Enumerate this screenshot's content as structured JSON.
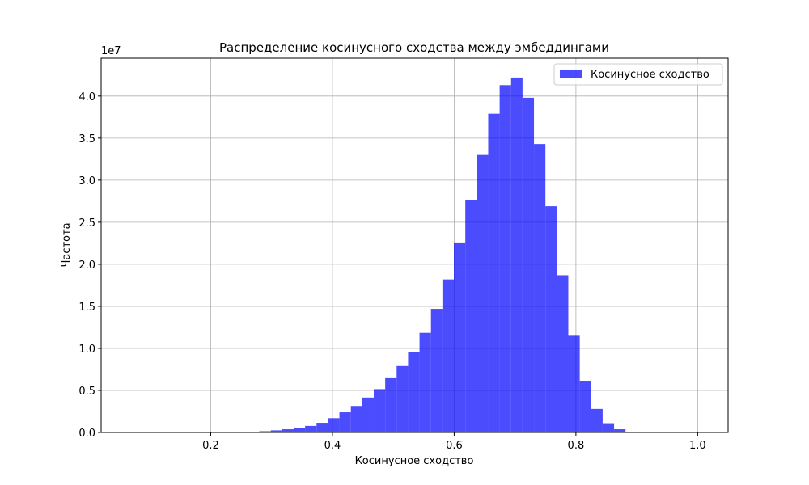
{
  "chart_data": {
    "type": "bar",
    "title": "Распределение косинусного сходства между эмбеддингами",
    "xlabel": "Косинусное сходство",
    "ylabel": "Частота",
    "y_multiplier_label": "1e7",
    "xlim": [
      0.02,
      1.05
    ],
    "ylim": [
      0,
      44500000
    ],
    "x_ticks": [
      0.2,
      0.4,
      0.6,
      0.8,
      1.0
    ],
    "x_tick_labels": [
      "0.2",
      "0.4",
      "0.6",
      "0.8",
      "1.0"
    ],
    "y_ticks": [
      0,
      5000000,
      10000000,
      15000000,
      20000000,
      25000000,
      30000000,
      35000000,
      40000000
    ],
    "y_tick_labels": [
      "0.0",
      "0.5",
      "1.0",
      "1.5",
      "2.0",
      "2.5",
      "3.0",
      "3.5",
      "4.0"
    ],
    "grid": true,
    "legend_position": "top-right",
    "series": [
      {
        "name": "Косинусное сходство",
        "color": "#0000ff",
        "opacity": 0.7,
        "bin_start": 0.2423,
        "bin_width": 0.0188,
        "values": [
          40000,
          80000,
          150000,
          250000,
          380000,
          530000,
          780000,
          1150000,
          1700000,
          2400000,
          3150000,
          4150000,
          5150000,
          6450000,
          7900000,
          9600000,
          11850000,
          14700000,
          18200000,
          22500000,
          27600000,
          33000000,
          37900000,
          41300000,
          42200000,
          39800000,
          34300000,
          26900000,
          18700000,
          11500000,
          6150000,
          2800000,
          1100000,
          380000,
          90000
        ]
      }
    ]
  }
}
